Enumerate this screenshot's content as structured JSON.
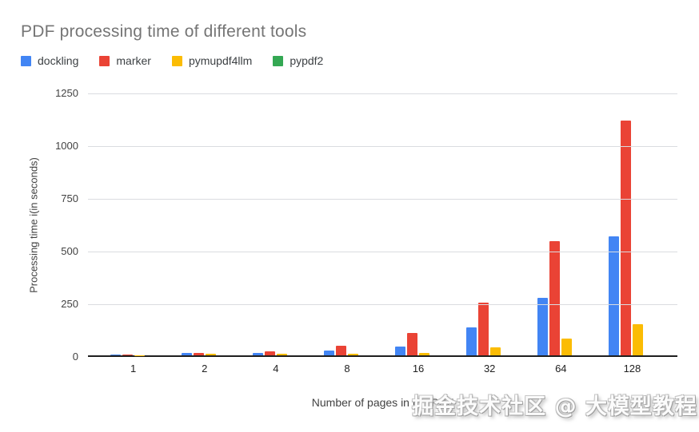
{
  "title": "PDF processing time of different tools",
  "legend": {
    "items": [
      {
        "label": "dockling",
        "color": "#4285f4"
      },
      {
        "label": "marker",
        "color": "#ea4335"
      },
      {
        "label": "pymupdf4llm",
        "color": "#fbbc04"
      },
      {
        "label": "pypdf2",
        "color": "#34a853"
      }
    ]
  },
  "chart_data": {
    "type": "bar",
    "title": "PDF processing time of different tools",
    "categories": [
      "1",
      "2",
      "4",
      "8",
      "16",
      "32",
      "64",
      "128"
    ],
    "series": [
      {
        "name": "dockling",
        "color": "#4285f4",
        "values": [
          5,
          10,
          13,
          22,
          42,
          132,
          273,
          564
        ]
      },
      {
        "name": "marker",
        "color": "#ea4335",
        "values": [
          3,
          12,
          20,
          46,
          108,
          250,
          541,
          1113
        ]
      },
      {
        "name": "pymupdf4llm",
        "color": "#fbbc04",
        "values": [
          1,
          7,
          7,
          8,
          11,
          38,
          80,
          148
        ]
      },
      {
        "name": "pypdf2",
        "color": "#34a853",
        "values": [
          0,
          0,
          0,
          0,
          0,
          0,
          0,
          0
        ]
      }
    ],
    "xlabel": "Number of pages in the PDF",
    "ylabel": "Processing time i(in seconds)",
    "ylim": [
      0,
      1250
    ],
    "yticks": [
      0,
      250,
      500,
      750,
      1000,
      1250
    ],
    "grid": true,
    "legend_position": "top-left"
  },
  "colors": {
    "title_text": "#757575",
    "axis_text": "#424242",
    "gridline": "#dadce0",
    "baseline": "#1f1f1f",
    "background": "#ffffff"
  },
  "watermark": "掘金技术社区 @ 大模型教程"
}
